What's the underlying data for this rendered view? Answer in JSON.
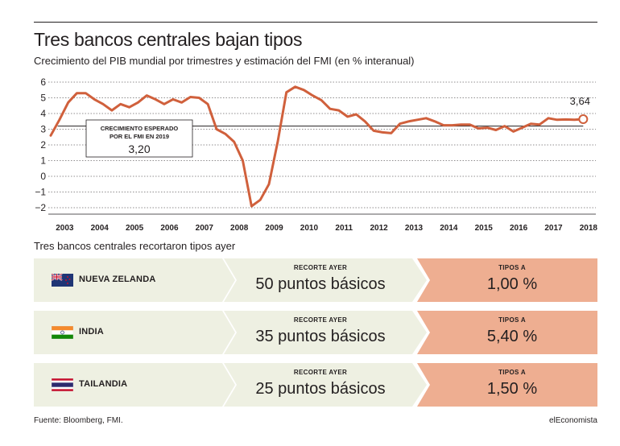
{
  "header": {
    "title": "Tres bancos centrales bajan tipos",
    "subtitle": "Crecimiento del PIB mundial por trimestres y estimación del FMI (en % interanual)"
  },
  "chart_data": {
    "type": "line",
    "title": "Tres bancos centrales bajan tipos",
    "subtitle": "Crecimiento del PIB mundial por trimestres y estimación del FMI (en % interanual)",
    "ylim": [
      -2,
      6
    ],
    "yticks": [
      "6",
      "5",
      "4",
      "3",
      "2",
      "1",
      "0",
      "−1",
      "−2"
    ],
    "xticks": [
      "2003",
      "2004",
      "2005",
      "2006",
      "2007",
      "2008",
      "2009",
      "2010",
      "2011",
      "2012",
      "2013",
      "2014",
      "2015",
      "2016",
      "2017",
      "2018"
    ],
    "series_color": "#d0603c",
    "reference_line": {
      "value": 3.2,
      "label": "CRECIMIENTO ESPERADO POR EL FMI EN 2019",
      "value_label": "3,20"
    },
    "end_label": "3,64",
    "points": [
      {
        "x": 2003.0,
        "y": 2.6
      },
      {
        "x": 2003.25,
        "y": 3.6
      },
      {
        "x": 2003.5,
        "y": 4.7
      },
      {
        "x": 2003.75,
        "y": 5.3
      },
      {
        "x": 2004.0,
        "y": 5.3
      },
      {
        "x": 2004.25,
        "y": 4.9
      },
      {
        "x": 2004.5,
        "y": 4.6
      },
      {
        "x": 2004.75,
        "y": 4.2
      },
      {
        "x": 2005.0,
        "y": 4.6
      },
      {
        "x": 2005.25,
        "y": 4.4
      },
      {
        "x": 2005.5,
        "y": 4.7
      },
      {
        "x": 2005.75,
        "y": 5.15
      },
      {
        "x": 2006.0,
        "y": 4.9
      },
      {
        "x": 2006.25,
        "y": 4.6
      },
      {
        "x": 2006.5,
        "y": 4.9
      },
      {
        "x": 2006.75,
        "y": 4.7
      },
      {
        "x": 2007.0,
        "y": 5.05
      },
      {
        "x": 2007.25,
        "y": 5.0
      },
      {
        "x": 2007.5,
        "y": 4.6
      },
      {
        "x": 2007.75,
        "y": 3.0
      },
      {
        "x": 2008.0,
        "y": 2.7
      },
      {
        "x": 2008.25,
        "y": 2.2
      },
      {
        "x": 2008.5,
        "y": 1.0
      },
      {
        "x": 2008.75,
        "y": -1.9
      },
      {
        "x": 2009.0,
        "y": -1.5
      },
      {
        "x": 2009.25,
        "y": -0.5
      },
      {
        "x": 2009.5,
        "y": 2.2
      },
      {
        "x": 2009.75,
        "y": 5.35
      },
      {
        "x": 2010.0,
        "y": 5.7
      },
      {
        "x": 2010.25,
        "y": 5.5
      },
      {
        "x": 2010.5,
        "y": 5.15
      },
      {
        "x": 2010.75,
        "y": 4.85
      },
      {
        "x": 2011.0,
        "y": 4.3
      },
      {
        "x": 2011.25,
        "y": 4.2
      },
      {
        "x": 2011.5,
        "y": 3.8
      },
      {
        "x": 2011.75,
        "y": 3.95
      },
      {
        "x": 2012.0,
        "y": 3.5
      },
      {
        "x": 2012.25,
        "y": 2.9
      },
      {
        "x": 2012.5,
        "y": 2.8
      },
      {
        "x": 2012.75,
        "y": 2.75
      },
      {
        "x": 2013.0,
        "y": 3.35
      },
      {
        "x": 2013.25,
        "y": 3.5
      },
      {
        "x": 2013.5,
        "y": 3.6
      },
      {
        "x": 2013.75,
        "y": 3.7
      },
      {
        "x": 2014.0,
        "y": 3.5
      },
      {
        "x": 2014.25,
        "y": 3.25
      },
      {
        "x": 2014.5,
        "y": 3.25
      },
      {
        "x": 2014.75,
        "y": 3.3
      },
      {
        "x": 2015.0,
        "y": 3.3
      },
      {
        "x": 2015.25,
        "y": 3.05
      },
      {
        "x": 2015.5,
        "y": 3.1
      },
      {
        "x": 2015.75,
        "y": 2.95
      },
      {
        "x": 2016.0,
        "y": 3.2
      },
      {
        "x": 2016.25,
        "y": 2.85
      },
      {
        "x": 2016.5,
        "y": 3.1
      },
      {
        "x": 2016.75,
        "y": 3.35
      },
      {
        "x": 2017.0,
        "y": 3.3
      },
      {
        "x": 2017.25,
        "y": 3.7
      },
      {
        "x": 2017.5,
        "y": 3.6
      },
      {
        "x": 2017.75,
        "y": 3.62
      },
      {
        "x": 2018.0,
        "y": 3.6
      },
      {
        "x": 2018.25,
        "y": 3.64
      }
    ]
  },
  "rates": {
    "section_title": "Tres bancos centrales recortaron tipos ayer",
    "cut_header": "RECORTE AYER",
    "rate_header": "TIPOS A",
    "rows": [
      {
        "country": "NUEVA ZELANDA",
        "flag": "nz-flag-icon",
        "cut": "50 puntos básicos",
        "rate": "1,00 %"
      },
      {
        "country": "INDIA",
        "flag": "india-flag-icon",
        "cut": "35 puntos básicos",
        "rate": "5,40 %"
      },
      {
        "country": "TAILANDIA",
        "flag": "thailand-flag-icon",
        "cut": "25 puntos básicos",
        "rate": "1,50 %"
      }
    ]
  },
  "footer": {
    "source": "Fuente: Bloomberg, FMI.",
    "brand": "elEconomista"
  },
  "colors": {
    "line": "#d0603c",
    "row_bg": "#eef0e2",
    "rate_bg": "#eeae91",
    "text": "#231f20"
  }
}
